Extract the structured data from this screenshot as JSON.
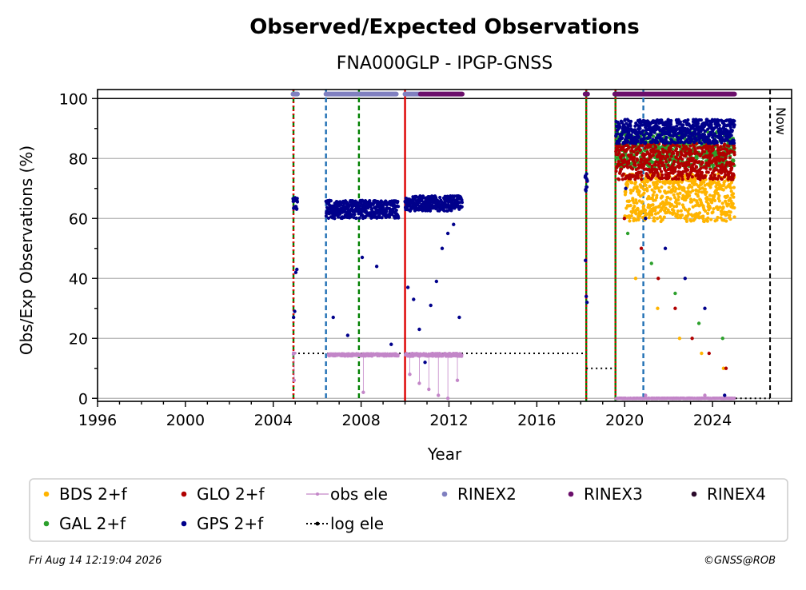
{
  "chart_data": {
    "type": "scatter",
    "title": "Observed/Expected Observations",
    "subtitle": "FNA000GLP - IPGP-GNSS",
    "xlabel": "Year",
    "ylabel": "Obs/Exp Observations (%)",
    "xlim": [
      1996,
      2027.6
    ],
    "ylim": [
      -1,
      103
    ],
    "x_ticks": [
      "1996",
      "2000",
      "2004",
      "2008",
      "2012",
      "2016",
      "2020",
      "2024"
    ],
    "y_ticks": [
      "0",
      "20",
      "40",
      "60",
      "80",
      "100"
    ],
    "grid": "horizontal",
    "legend_position": "bottom",
    "now_label": "Now",
    "now_x": 2026.62,
    "colors": {
      "BDS": "#ffb400",
      "GLO": "#b00000",
      "GAL": "#2ca02c",
      "GPS": "#00008b",
      "obs_ele": "#c386c8",
      "log_ele": "#000000",
      "RINEX2": "#8080c0",
      "RINEX3": "#6b0f6b",
      "RINEX4": "#2a0a2a",
      "event_green": "#008000",
      "event_red": "#dd0000",
      "event_blue": "#1f6fb4"
    },
    "legend": [
      {
        "label": "BDS 2+f",
        "key": "BDS",
        "style": "dot"
      },
      {
        "label": "GLO 2+f",
        "key": "GLO",
        "style": "dot"
      },
      {
        "label": "obs ele",
        "key": "obs_ele",
        "style": "line"
      },
      {
        "label": "RINEX2",
        "key": "RINEX2",
        "style": "dot"
      },
      {
        "label": "RINEX3",
        "key": "RINEX3",
        "style": "dot"
      },
      {
        "label": "RINEX4",
        "key": "RINEX4",
        "style": "dot"
      },
      {
        "label": "GAL 2+f",
        "key": "GAL",
        "style": "dot"
      },
      {
        "label": "GPS 2+f",
        "key": "GPS",
        "style": "dot"
      },
      {
        "label": "log ele",
        "key": "log_ele",
        "style": "dotted"
      }
    ],
    "event_lines": [
      {
        "x": 2004.92,
        "color": "event_green",
        "dash": "dashed"
      },
      {
        "x": 2004.92,
        "color": "event_red",
        "dash": "dotted"
      },
      {
        "x": 2006.4,
        "color": "event_blue",
        "dash": "dashed"
      },
      {
        "x": 2007.9,
        "color": "event_green",
        "dash": "dashed"
      },
      {
        "x": 2010.0,
        "color": "event_red",
        "dash": "solid"
      },
      {
        "x": 2018.25,
        "color": "event_green",
        "dash": "solid"
      },
      {
        "x": 2018.25,
        "color": "event_red",
        "dash": "dotted"
      },
      {
        "x": 2019.58,
        "color": "event_green",
        "dash": "solid"
      },
      {
        "x": 2019.58,
        "color": "event_red",
        "dash": "dotted"
      },
      {
        "x": 2020.85,
        "color": "event_blue",
        "dash": "dashed"
      }
    ],
    "rinex_coverage": [
      {
        "key": "RINEX2",
        "from": 2004.9,
        "to": 2005.1,
        "y": 101.5
      },
      {
        "key": "RINEX2",
        "from": 2006.4,
        "to": 2009.6,
        "y": 101.5
      },
      {
        "key": "RINEX2",
        "from": 2010.0,
        "to": 2010.7,
        "y": 101.5
      },
      {
        "key": "RINEX3",
        "from": 2010.7,
        "to": 2012.6,
        "y": 101.5
      },
      {
        "key": "RINEX3",
        "from": 2018.2,
        "to": 2018.3,
        "y": 101.5
      },
      {
        "key": "RINEX3",
        "from": 2019.55,
        "to": 2025.0,
        "y": 101.5
      }
    ],
    "log_ele": [
      {
        "from": 2004.92,
        "to": 2018.25,
        "y": 15
      },
      {
        "from": 2018.25,
        "to": 2019.58,
        "y": 10
      },
      {
        "from": 2019.58,
        "to": 2026.62,
        "y": 0
      }
    ],
    "series": [
      {
        "name": "GPS 2+f",
        "key": "GPS",
        "segments": [
          {
            "from": 2004.9,
            "to": 2005.1,
            "center": 65,
            "spread": 2,
            "outliers": [
              27,
              29,
              42,
              43
            ]
          },
          {
            "from": 2006.4,
            "to": 2009.7,
            "center": 63,
            "spread": 3,
            "outliers": [
              27,
              21,
              47,
              44,
              18
            ]
          },
          {
            "from": 2010.0,
            "to": 2012.6,
            "center": 65,
            "spread": 2.5,
            "outliers": [
              37,
              33,
              23,
              12,
              31,
              39,
              50,
              55,
              58,
              27
            ]
          },
          {
            "from": 2018.2,
            "to": 2018.3,
            "center": 72,
            "spread": 3,
            "outliers": [
              46,
              34,
              32
            ]
          },
          {
            "from": 2019.6,
            "to": 2025.0,
            "center": 89,
            "spread": 4,
            "outliers": [
              70,
              60,
              50,
              40,
              30,
              1
            ]
          }
        ]
      },
      {
        "name": "GLO 2+f",
        "key": "GLO",
        "segments": [
          {
            "from": 2019.6,
            "to": 2025.0,
            "center": 79,
            "spread": 6,
            "outliers": [
              60,
              50,
              40,
              30,
              20,
              15,
              10
            ]
          }
        ]
      },
      {
        "name": "GAL 2+f",
        "key": "GAL",
        "segments": [
          {
            "from": 2019.6,
            "to": 2025.0,
            "center": 83,
            "spread": 6,
            "outliers": [
              55,
              45,
              35,
              25,
              20
            ]
          }
        ]
      },
      {
        "name": "BDS 2+f",
        "key": "BDS",
        "segments": [
          {
            "from": 2020.0,
            "to": 2025.0,
            "center": 67,
            "spread": 8,
            "outliers": [
              40,
              30,
              20,
              15,
              10
            ]
          }
        ]
      },
      {
        "name": "obs ele",
        "key": "obs_ele",
        "segments": [
          {
            "from": 2004.9,
            "to": 2005.0,
            "center": 15,
            "spread": 0.3,
            "outliers": [
              6
            ]
          },
          {
            "from": 2006.5,
            "to": 2009.7,
            "center": 14.5,
            "spread": 0.5,
            "outliers": [
              2
            ]
          },
          {
            "from": 2010.0,
            "to": 2012.6,
            "center": 14.5,
            "spread": 0.6,
            "outliers": [
              8,
              5,
              3,
              1,
              0,
              6
            ]
          },
          {
            "from": 2019.6,
            "to": 2025.0,
            "center": 0,
            "spread": 0.2,
            "outliers": [
              1,
              1
            ]
          }
        ]
      }
    ]
  },
  "footer": {
    "timestamp": "Fri Aug 14 12:19:04 2026",
    "copyright": "©GNSS@ROB"
  }
}
